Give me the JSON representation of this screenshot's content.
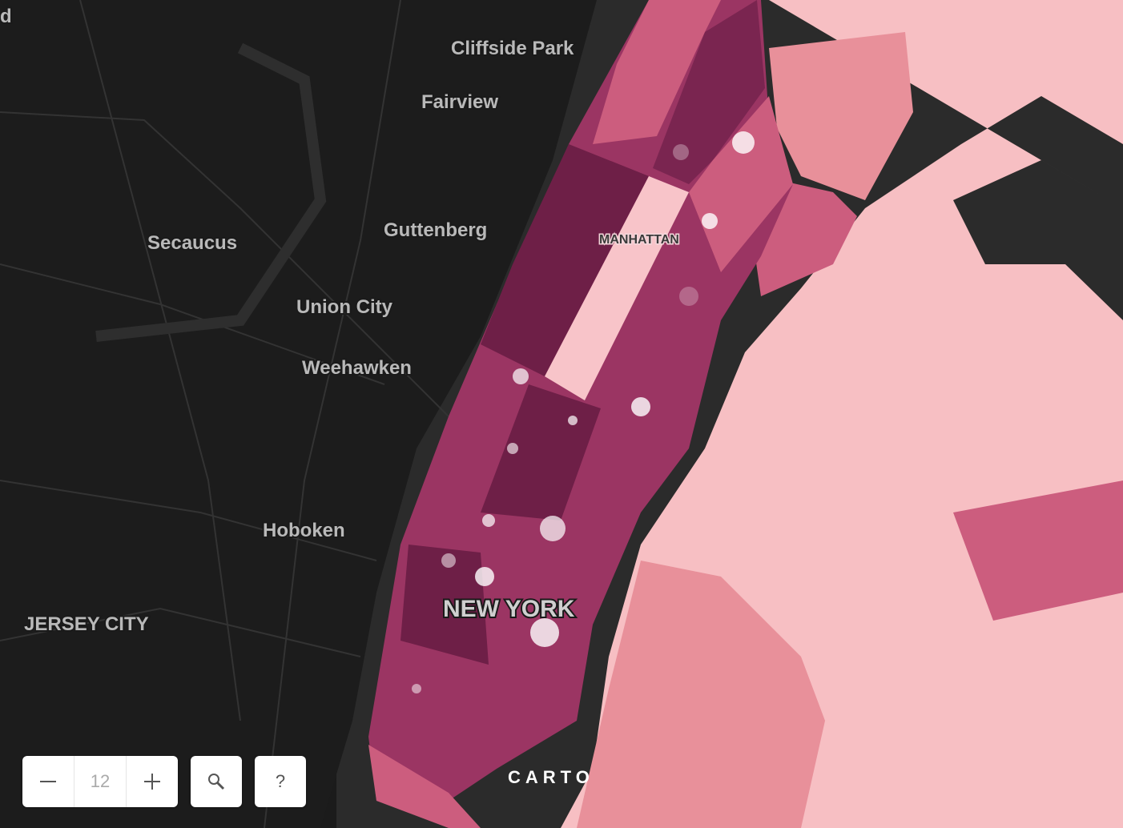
{
  "map": {
    "labels": [
      "d",
      "Cliffside Park",
      "Fairview",
      "Secaucus",
      "Guttenberg",
      "Union City",
      "Weehawken",
      "Hoboken",
      "JERSEY CITY",
      "MANHATTAN",
      "NEW YORK"
    ]
  },
  "controls": {
    "zoom": 12,
    "help": "?"
  },
  "attribution": "CARTO"
}
